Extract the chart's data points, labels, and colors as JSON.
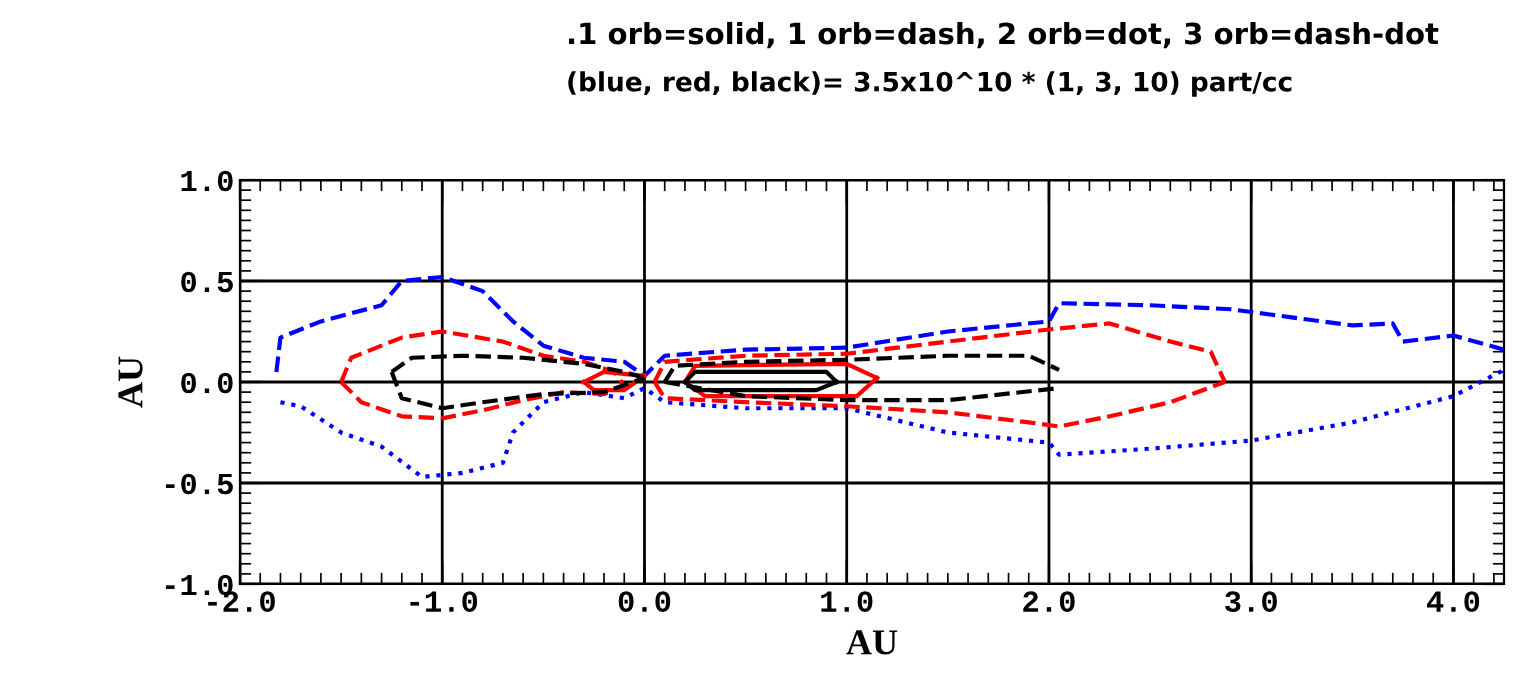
{
  "chart_data": {
    "type": "line",
    "title": ".1 orb=solid, 1 orb=dash, 2 orb=dot, 3 orb=dash-dot",
    "subtitle": "(blue, red, black)= 3.5x10^10 * (1, 3, 10) part/cc",
    "xlabel": "AU",
    "ylabel": "AU",
    "xlim": [
      -2.0,
      4.25
    ],
    "ylim": [
      -1.0,
      1.0
    ],
    "xticks": [
      {
        "value": -2,
        "label": "-2.0"
      },
      {
        "value": -1,
        "label": "-1.0"
      },
      {
        "value": 0,
        "label": "0.0"
      },
      {
        "value": 1,
        "label": "1.0"
      },
      {
        "value": 2,
        "label": "2.0"
      },
      {
        "value": 3,
        "label": "3.0"
      },
      {
        "value": 4,
        "label": "4.0"
      }
    ],
    "yticks": [
      {
        "value": -1,
        "label": "-1.0"
      },
      {
        "value": -0.5,
        "label": "-0.5"
      },
      {
        "value": 0,
        "label": "0.0"
      },
      {
        "value": 0.5,
        "label": "0.5"
      },
      {
        "value": 1,
        "label": "1.0"
      }
    ],
    "grid": true,
    "series": [
      {
        "color": "#0000ff",
        "line_style": "dashed",
        "x": [
          -1.82,
          -1.8,
          -1.6,
          -1.3,
          -1.2,
          -1.0,
          -0.8,
          -0.65,
          -0.5,
          -0.3,
          -0.1,
          0.0,
          0.1,
          0.5,
          1.0,
          1.5,
          2.0,
          2.05,
          2.5,
          2.9,
          3.2,
          3.5,
          3.7,
          3.75,
          4.0,
          4.25
        ],
        "values": [
          0.05,
          0.22,
          0.3,
          0.38,
          0.5,
          0.52,
          0.45,
          0.3,
          0.18,
          0.12,
          0.1,
          0.03,
          0.13,
          0.16,
          0.17,
          0.25,
          0.3,
          0.39,
          0.38,
          0.36,
          0.32,
          0.28,
          0.29,
          0.2,
          0.23,
          0.16
        ]
      },
      {
        "color": "#0000ff",
        "line_style": "dotted",
        "x": [
          -1.8,
          -1.7,
          -1.5,
          -1.3,
          -1.1,
          -0.9,
          -0.7,
          -0.65,
          -0.5,
          -0.3,
          -0.1,
          0.0,
          0.1,
          0.5,
          1.0,
          1.5,
          2.0,
          2.05,
          2.5,
          3.0,
          3.5,
          4.0,
          4.25
        ],
        "values": [
          -0.1,
          -0.12,
          -0.25,
          -0.32,
          -0.47,
          -0.45,
          -0.4,
          -0.25,
          -0.1,
          -0.05,
          -0.08,
          -0.03,
          -0.1,
          -0.13,
          -0.13,
          -0.25,
          -0.3,
          -0.36,
          -0.33,
          -0.29,
          -0.2,
          -0.07,
          0.06
        ]
      },
      {
        "color": "#ff0000",
        "line_style": "dashed",
        "x": [
          -1.5,
          -1.45,
          -1.2,
          -1.0,
          -0.7,
          -0.5,
          -0.3,
          -0.15,
          -0.1
        ],
        "values": [
          0.0,
          0.12,
          0.22,
          0.25,
          0.2,
          0.13,
          0.1,
          0.05,
          -0.02
        ]
      },
      {
        "color": "#ff0000",
        "line_style": "dashed",
        "x": [
          -1.5,
          -1.4,
          -1.2,
          -1.0,
          -0.8,
          -0.6,
          -0.4,
          -0.2,
          -0.1
        ],
        "values": [
          0.0,
          -0.1,
          -0.17,
          -0.18,
          -0.14,
          -0.09,
          -0.05,
          -0.06,
          -0.02
        ]
      },
      {
        "color": "#ff0000",
        "line_style": "solid",
        "x": [
          -0.3,
          -0.2,
          0.0
        ],
        "values": [
          0.0,
          0.05,
          0.03
        ]
      },
      {
        "color": "#ff0000",
        "line_style": "solid",
        "x": [
          -0.3,
          -0.25,
          -0.1,
          0.0
        ],
        "values": [
          0.0,
          -0.04,
          -0.04,
          0.03
        ]
      },
      {
        "color": "#ff0000",
        "line_style": "dashed",
        "x": [
          0.05,
          0.1,
          0.5,
          1.0,
          1.5,
          2.0,
          2.3,
          2.6,
          2.8,
          2.87
        ],
        "values": [
          0.0,
          0.1,
          0.13,
          0.14,
          0.2,
          0.26,
          0.29,
          0.2,
          0.15,
          0.0
        ]
      },
      {
        "color": "#ff0000",
        "line_style": "dashed",
        "x": [
          0.05,
          0.1,
          0.5,
          1.0,
          1.5,
          1.9,
          2.05,
          2.3,
          2.6,
          2.87
        ],
        "values": [
          0.0,
          -0.08,
          -0.1,
          -0.12,
          -0.15,
          -0.2,
          -0.22,
          -0.17,
          -0.1,
          0.0
        ]
      },
      {
        "color": "#ff0000",
        "line_style": "solid",
        "x": [
          0.2,
          0.25,
          1.0,
          1.15
        ],
        "values": [
          0.0,
          0.08,
          0.09,
          0.02
        ]
      },
      {
        "color": "#ff0000",
        "line_style": "solid",
        "x": [
          0.2,
          0.3,
          1.05,
          1.15
        ],
        "values": [
          0.0,
          -0.07,
          -0.07,
          0.02
        ]
      },
      {
        "color": "#000000",
        "line_style": "dashed",
        "x": [
          -1.25,
          -1.15,
          -0.9,
          -0.6,
          -0.3,
          -0.1,
          0.0
        ],
        "values": [
          0.05,
          0.12,
          0.13,
          0.12,
          0.09,
          0.05,
          0.02
        ]
      },
      {
        "color": "#000000",
        "line_style": "dashed",
        "x": [
          -1.25,
          -1.2,
          -1.0,
          -0.8,
          -0.5,
          -0.2,
          0.0
        ],
        "values": [
          0.05,
          -0.08,
          -0.13,
          -0.1,
          -0.06,
          -0.05,
          0.02
        ]
      },
      {
        "color": "#000000",
        "line_style": "dashed",
        "x": [
          0.1,
          0.15,
          0.5,
          1.0,
          1.5,
          1.9,
          2.05
        ],
        "values": [
          0.0,
          0.08,
          0.1,
          0.11,
          0.13,
          0.13,
          0.06
        ]
      },
      {
        "color": "#000000",
        "line_style": "dashed",
        "x": [
          0.1,
          0.5,
          1.0,
          1.5,
          2.05
        ],
        "values": [
          0.0,
          -0.07,
          -0.09,
          -0.09,
          -0.03
        ]
      },
      {
        "color": "#000000",
        "line_style": "solid",
        "x": [
          0.2,
          0.25,
          0.9,
          0.95
        ],
        "values": [
          0.0,
          0.05,
          0.05,
          0.0
        ]
      },
      {
        "color": "#000000",
        "line_style": "solid",
        "x": [
          0.2,
          0.25,
          0.85,
          0.95
        ],
        "values": [
          0.0,
          -0.04,
          -0.04,
          0.0
        ]
      }
    ]
  }
}
